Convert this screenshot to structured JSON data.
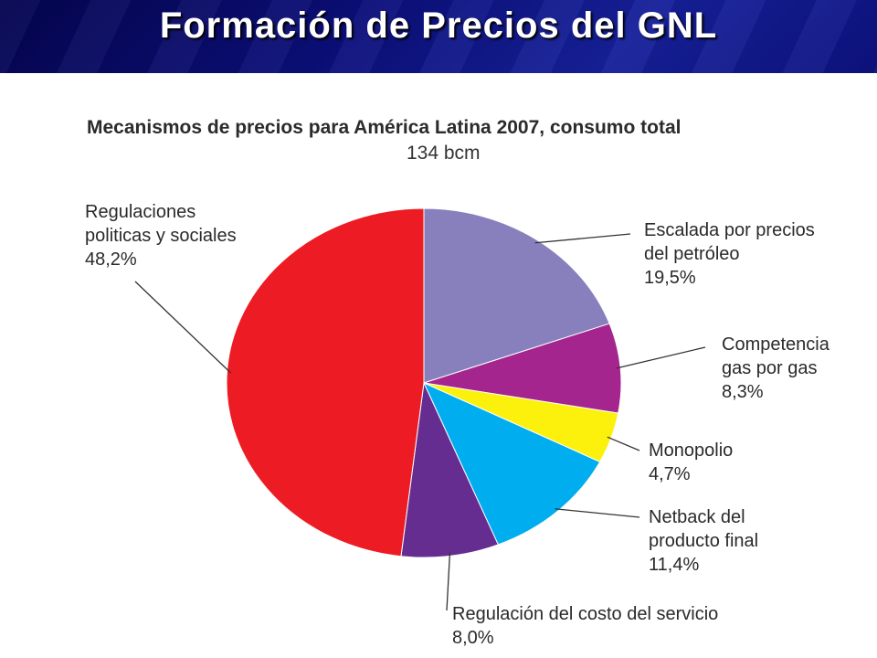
{
  "slide": {
    "title": "Formación de Precios del GNL"
  },
  "chart_data": {
    "type": "pie",
    "title": "Mecanismos de precios para América Latina 2007, consumo total",
    "subtitle": "134 bcm",
    "slices": [
      {
        "key": "escalada",
        "label_lines": [
          "Escalada por precios",
          "del petróleo"
        ],
        "value": 19.5,
        "value_text": "19,5%",
        "color": "#8780bd"
      },
      {
        "key": "competencia",
        "label_lines": [
          "Competencia",
          "gas por gas"
        ],
        "value": 8.3,
        "value_text": "8,3%",
        "color": "#a5258e"
      },
      {
        "key": "monopolio",
        "label_lines": [
          "Monopolio"
        ],
        "value": 4.7,
        "value_text": "4,7%",
        "color": "#fcf10c"
      },
      {
        "key": "netback",
        "label_lines": [
          "Netback del",
          "producto final"
        ],
        "value": 11.4,
        "value_text": "11,4%",
        "color": "#00aeef"
      },
      {
        "key": "regulacion-costo",
        "label_lines": [
          "Regulación del costo del servicio"
        ],
        "value": 8.0,
        "value_text": "8,0%",
        "color": "#662d91"
      },
      {
        "key": "regulaciones-politicas",
        "label_lines": [
          "Regulaciones",
          "politicas y sociales"
        ],
        "value": 48.2,
        "value_text": "48,2%",
        "color": "#ed1c24"
      }
    ]
  }
}
